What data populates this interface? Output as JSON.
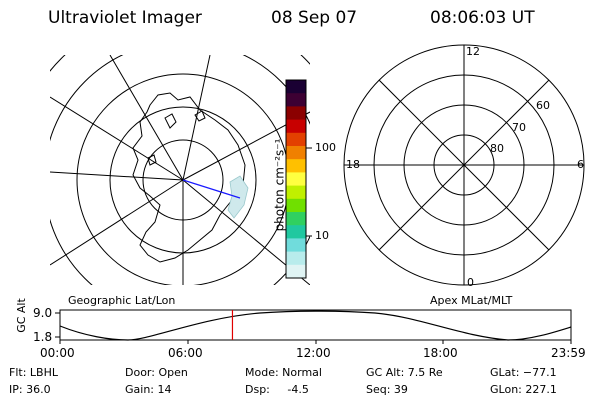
{
  "header": {
    "title": "Ultraviolet Imager",
    "date": "08 Sep 07",
    "time": "08:06:03 UT"
  },
  "left_panel": {
    "label": "Geographic Lat/Lon"
  },
  "right_panel": {
    "label": "Apex MLat/MLT",
    "mlt_labels": [
      "12",
      "18",
      "6",
      "0"
    ],
    "lat_labels": [
      "60",
      "70",
      "80"
    ]
  },
  "colorbar": {
    "unit_label": "photon cm⁻²s⁻¹",
    "ticks": [
      "100",
      "10"
    ],
    "colors": [
      "#1a0033",
      "#3d0033",
      "#8b0000",
      "#c80000",
      "#e34000",
      "#f08000",
      "#ffc000",
      "#ffff40",
      "#c0f000",
      "#70e000",
      "#30d060",
      "#20c8a0",
      "#70dcdc",
      "#b8ecec",
      "#e0f4f4"
    ]
  },
  "timeline": {
    "y_label": "GC Alt",
    "y_ticks": [
      "9.0",
      "1.8"
    ],
    "x_ticks": [
      "00:00",
      "06:00",
      "12:00",
      "18:00",
      "23:59"
    ],
    "current_time_hours": 8.1,
    "marker_color": "#e00000"
  },
  "footer": {
    "filter": "Flt: LBHL",
    "ip": "IP: 36.0",
    "door": "Door: Open",
    "gain": "Gain: 14",
    "mode": "Mode: Normal",
    "dsp": "Dsp:     -4.5",
    "gc_alt": "GC Alt: 7.5 Re",
    "seq": "Seq: 39",
    "glat": "GLat: −77.1",
    "glon": "GLon: 227.1"
  }
}
